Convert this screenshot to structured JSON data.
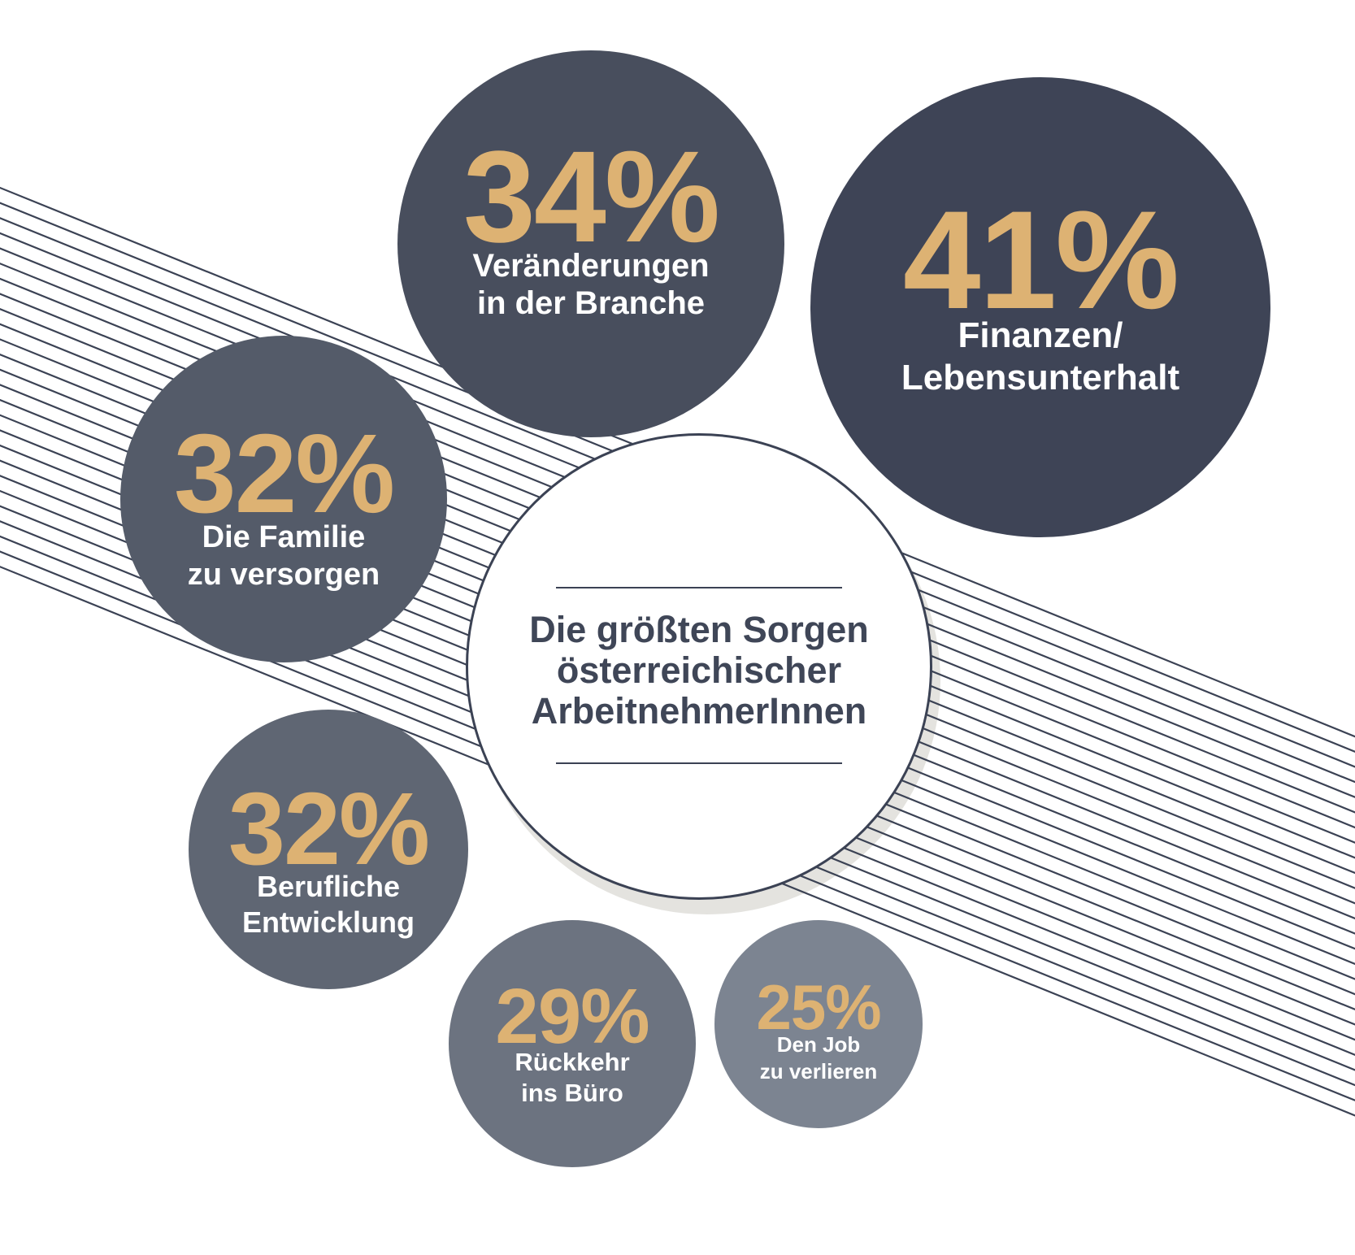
{
  "chart_data": {
    "type": "bubble",
    "title": "Die größten Sorgen österreichischer ArbeitnehmerInnen",
    "unit": "%",
    "series": [
      {
        "label": "Finanzen/Lebensunterhalt",
        "value": 41
      },
      {
        "label": "Veränderungen in der Branche",
        "value": 34
      },
      {
        "label": "Die Familie zu versorgen",
        "value": 32
      },
      {
        "label": "Berufliche Entwicklung",
        "value": 32
      },
      {
        "label": "Rückkehr ins Büro",
        "value": 29
      },
      {
        "label": "Den Job zu verlieren",
        "value": 25
      }
    ],
    "layout": "proportional bubbles arranged around a central white title circle; diagonal hatched line band runs from top-left to bottom-right behind the bubbles; legend none; values shown as large gold percentages inside each bubble"
  },
  "title": {
    "text": "Die größten Sorgen\nösterreichischer\nArbeitnehmerInnen"
  },
  "bubbles": {
    "industry": {
      "value": "34%",
      "label": "Veränderungen\nin der Branche"
    },
    "finance": {
      "value": "41%",
      "label": "Finanzen/\nLebensunterhalt"
    },
    "family": {
      "value": "32%",
      "label": "Die Familie\nzu versorgen"
    },
    "career": {
      "value": "32%",
      "label": "Berufliche\nEntwicklung"
    },
    "office": {
      "value": "29%",
      "label": "Rückkehr\nins Büro"
    },
    "job": {
      "value": "25%",
      "label": "Den Job\nzu verlieren"
    }
  },
  "colors": {
    "gold": "#ddb273",
    "ink": "#3b4254",
    "title_text": "#3f4657",
    "bubble_finance": "#3e4456",
    "bubble_industry": "#484e5d",
    "bubble_family": "#545b69",
    "bubble_career": "#5f6673",
    "bubble_office": "#6c7380",
    "bubble_job": "#7c8491",
    "shadow": "#e4e3df",
    "background": "#ffffff"
  },
  "hatch": {
    "line_count": 26,
    "start_y": 231,
    "spacing": 18.65,
    "slope": 0.405,
    "stroke_width": 2.2
  }
}
